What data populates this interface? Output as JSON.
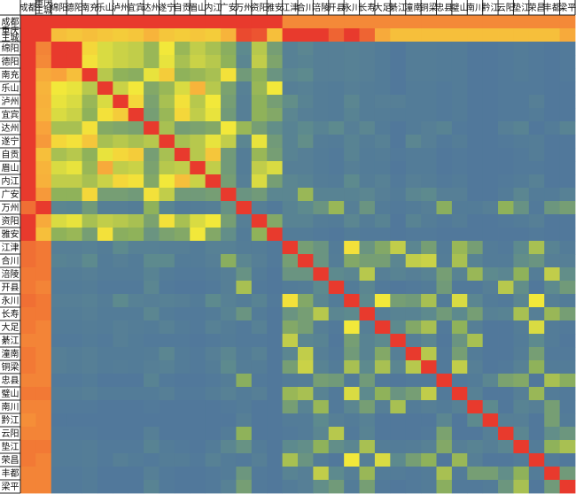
{
  "chart_data": {
    "type": "heatmap",
    "title": "",
    "xlabel": "",
    "ylabel": "",
    "colormap": {
      "low": "#4466a8",
      "stops": [
        "#4466a8",
        "#5d8a8e",
        "#8fb25a",
        "#f2e83a",
        "#f8a33b",
        "#e83a2d"
      ],
      "high": "#e83a2d"
    },
    "labels": [
      "成都",
      "重庆主城",
      "绵阳",
      "德阳",
      "南充",
      "乐山",
      "泸州",
      "宜宾",
      "达州",
      "遂宁",
      "自贡",
      "眉山",
      "内江",
      "广安",
      "万州",
      "资阳",
      "雅安",
      "江津",
      "合川",
      "涪陵",
      "开县",
      "永川",
      "长寿",
      "大足",
      "綦江",
      "潼南",
      "铜梁",
      "忠县",
      "璧山",
      "南川",
      "黔江",
      "云阳",
      "垫江",
      "荣昌",
      "丰都",
      "梁平"
    ],
    "values": [
      [
        1.0,
        1.0,
        1.0,
        1.0,
        1.0,
        1.0,
        1.0,
        1.0,
        1.0,
        1.0,
        1.0,
        1.0,
        1.0,
        1.0,
        1.0,
        1.0,
        1.0,
        0.85,
        0.85,
        0.85,
        0.85,
        0.85,
        0.85,
        0.85,
        0.85,
        0.85,
        0.85,
        0.85,
        0.85,
        0.85,
        0.85,
        0.85,
        0.85,
        0.85,
        0.85,
        0.85
      ],
      [
        1.0,
        1.0,
        0.72,
        0.7,
        0.72,
        0.7,
        0.68,
        0.7,
        0.75,
        0.7,
        0.68,
        0.7,
        0.68,
        0.75,
        0.97,
        0.95,
        0.72,
        1.0,
        1.0,
        1.0,
        0.92,
        1.0,
        0.92,
        0.78,
        0.72,
        0.72,
        0.72,
        0.72,
        0.72,
        0.72,
        0.72,
        0.72,
        0.72,
        0.72,
        0.72,
        0.78
      ],
      [
        1.0,
        0.86,
        1.0,
        1.0,
        0.65,
        0.55,
        0.52,
        0.5,
        0.42,
        0.6,
        0.42,
        0.5,
        0.45,
        0.38,
        0.2,
        0.48,
        0.3,
        0.15,
        0.18,
        0.14,
        0.14,
        0.15,
        0.14,
        0.12,
        0.1,
        0.13,
        0.13,
        0.12,
        0.12,
        0.1,
        0.1,
        0.11,
        0.12,
        0.11,
        0.1,
        0.11
      ],
      [
        1.0,
        0.85,
        1.0,
        1.0,
        0.62,
        0.55,
        0.52,
        0.5,
        0.42,
        0.58,
        0.45,
        0.52,
        0.48,
        0.4,
        0.18,
        0.5,
        0.33,
        0.15,
        0.16,
        0.14,
        0.14,
        0.15,
        0.14,
        0.12,
        0.1,
        0.13,
        0.13,
        0.12,
        0.12,
        0.1,
        0.1,
        0.11,
        0.12,
        0.11,
        0.1,
        0.11
      ],
      [
        1.0,
        0.78,
        0.8,
        0.72,
        1.0,
        0.48,
        0.4,
        0.38,
        0.58,
        0.68,
        0.4,
        0.42,
        0.45,
        0.62,
        0.28,
        0.4,
        0.25,
        0.18,
        0.2,
        0.14,
        0.14,
        0.15,
        0.14,
        0.12,
        0.1,
        0.13,
        0.13,
        0.12,
        0.12,
        0.1,
        0.1,
        0.11,
        0.12,
        0.11,
        0.1,
        0.11
      ],
      [
        1.0,
        0.75,
        0.6,
        0.58,
        0.48,
        1.0,
        0.52,
        0.6,
        0.35,
        0.42,
        0.55,
        0.75,
        0.48,
        0.32,
        0.15,
        0.42,
        0.6,
        0.14,
        0.15,
        0.13,
        0.12,
        0.14,
        0.13,
        0.12,
        0.1,
        0.12,
        0.12,
        0.11,
        0.12,
        0.1,
        0.1,
        0.11,
        0.11,
        0.11,
        0.1,
        0.1
      ],
      [
        1.0,
        0.76,
        0.58,
        0.55,
        0.42,
        0.55,
        1.0,
        0.65,
        0.32,
        0.45,
        0.62,
        0.48,
        0.6,
        0.3,
        0.14,
        0.4,
        0.3,
        0.22,
        0.16,
        0.13,
        0.12,
        0.18,
        0.13,
        0.14,
        0.14,
        0.12,
        0.12,
        0.11,
        0.12,
        0.1,
        0.1,
        0.11,
        0.11,
        0.14,
        0.1,
        0.1
      ],
      [
        1.0,
        0.75,
        0.55,
        0.52,
        0.4,
        0.62,
        0.68,
        1.0,
        0.3,
        0.42,
        0.65,
        0.5,
        0.58,
        0.28,
        0.14,
        0.4,
        0.35,
        0.18,
        0.14,
        0.13,
        0.12,
        0.16,
        0.13,
        0.13,
        0.12,
        0.12,
        0.12,
        0.11,
        0.12,
        0.1,
        0.1,
        0.11,
        0.11,
        0.12,
        0.1,
        0.1
      ],
      [
        1.0,
        0.8,
        0.45,
        0.45,
        0.62,
        0.36,
        0.34,
        0.32,
        1.0,
        0.45,
        0.3,
        0.32,
        0.35,
        0.6,
        0.42,
        0.3,
        0.22,
        0.16,
        0.2,
        0.16,
        0.2,
        0.14,
        0.18,
        0.12,
        0.1,
        0.12,
        0.14,
        0.16,
        0.11,
        0.1,
        0.1,
        0.14,
        0.16,
        0.1,
        0.12,
        0.16
      ],
      [
        1.0,
        0.82,
        0.65,
        0.62,
        0.7,
        0.45,
        0.48,
        0.45,
        0.48,
        1.0,
        0.45,
        0.48,
        0.58,
        0.5,
        0.18,
        0.58,
        0.28,
        0.16,
        0.22,
        0.13,
        0.12,
        0.16,
        0.13,
        0.15,
        0.1,
        0.18,
        0.14,
        0.11,
        0.13,
        0.1,
        0.1,
        0.11,
        0.12,
        0.13,
        0.1,
        0.1
      ],
      [
        1.0,
        0.72,
        0.45,
        0.48,
        0.4,
        0.58,
        0.65,
        0.68,
        0.3,
        0.45,
        1.0,
        0.48,
        0.7,
        0.28,
        0.13,
        0.42,
        0.3,
        0.16,
        0.14,
        0.12,
        0.11,
        0.16,
        0.12,
        0.13,
        0.11,
        0.12,
        0.12,
        0.1,
        0.11,
        0.1,
        0.1,
        0.1,
        0.11,
        0.13,
        0.1,
        0.1
      ],
      [
        1.0,
        0.75,
        0.55,
        0.58,
        0.42,
        0.78,
        0.5,
        0.52,
        0.32,
        0.48,
        0.5,
        1.0,
        0.5,
        0.28,
        0.13,
        0.5,
        0.55,
        0.14,
        0.14,
        0.12,
        0.11,
        0.14,
        0.12,
        0.12,
        0.1,
        0.12,
        0.12,
        0.1,
        0.11,
        0.1,
        0.1,
        0.1,
        0.11,
        0.11,
        0.1,
        0.1
      ],
      [
        1.0,
        0.76,
        0.5,
        0.5,
        0.45,
        0.52,
        0.65,
        0.62,
        0.35,
        0.6,
        0.72,
        0.52,
        1.0,
        0.3,
        0.14,
        0.55,
        0.3,
        0.18,
        0.16,
        0.13,
        0.12,
        0.2,
        0.13,
        0.15,
        0.11,
        0.14,
        0.13,
        0.11,
        0.12,
        0.1,
        0.1,
        0.11,
        0.12,
        0.15,
        0.1,
        0.1
      ],
      [
        1.0,
        0.82,
        0.4,
        0.4,
        0.65,
        0.3,
        0.3,
        0.28,
        0.62,
        0.5,
        0.28,
        0.28,
        0.3,
        1.0,
        0.25,
        0.28,
        0.18,
        0.18,
        0.42,
        0.16,
        0.16,
        0.16,
        0.18,
        0.14,
        0.12,
        0.18,
        0.2,
        0.14,
        0.14,
        0.1,
        0.1,
        0.12,
        0.18,
        0.12,
        0.12,
        0.15
      ],
      [
        0.9,
        1.0,
        0.18,
        0.17,
        0.28,
        0.14,
        0.14,
        0.13,
        0.4,
        0.17,
        0.12,
        0.13,
        0.14,
        0.24,
        1.0,
        0.14,
        0.11,
        0.16,
        0.2,
        0.25,
        0.42,
        0.14,
        0.25,
        0.12,
        0.11,
        0.12,
        0.14,
        0.38,
        0.12,
        0.12,
        0.14,
        0.4,
        0.24,
        0.11,
        0.26,
        0.3
      ],
      [
        1.0,
        0.78,
        0.55,
        0.58,
        0.45,
        0.5,
        0.48,
        0.45,
        0.32,
        0.62,
        0.45,
        0.55,
        0.6,
        0.3,
        0.14,
        1.0,
        0.35,
        0.16,
        0.16,
        0.13,
        0.12,
        0.18,
        0.13,
        0.16,
        0.1,
        0.16,
        0.13,
        0.11,
        0.13,
        0.1,
        0.1,
        0.11,
        0.12,
        0.14,
        0.1,
        0.1
      ],
      [
        1.0,
        0.72,
        0.4,
        0.42,
        0.3,
        0.62,
        0.38,
        0.4,
        0.25,
        0.32,
        0.35,
        0.6,
        0.35,
        0.22,
        0.12,
        0.4,
        1.0,
        0.12,
        0.12,
        0.11,
        0.1,
        0.12,
        0.11,
        0.11,
        0.1,
        0.11,
        0.11,
        0.1,
        0.1,
        0.1,
        0.1,
        0.1,
        0.1,
        0.11,
        0.1,
        0.1
      ],
      [
        0.9,
        0.88,
        0.14,
        0.14,
        0.15,
        0.13,
        0.2,
        0.15,
        0.15,
        0.14,
        0.14,
        0.12,
        0.15,
        0.15,
        0.13,
        0.13,
        0.11,
        1.0,
        0.3,
        0.25,
        0.12,
        0.62,
        0.25,
        0.35,
        0.5,
        0.18,
        0.3,
        0.12,
        0.42,
        0.3,
        0.12,
        0.11,
        0.2,
        0.45,
        0.16,
        0.12
      ],
      [
        0.9,
        0.88,
        0.16,
        0.15,
        0.2,
        0.12,
        0.14,
        0.12,
        0.2,
        0.2,
        0.12,
        0.12,
        0.14,
        0.38,
        0.18,
        0.14,
        0.11,
        0.3,
        1.0,
        0.25,
        0.13,
        0.35,
        0.3,
        0.3,
        0.18,
        0.5,
        0.52,
        0.13,
        0.45,
        0.16,
        0.12,
        0.12,
        0.22,
        0.25,
        0.14,
        0.14
      ],
      [
        0.88,
        0.88,
        0.13,
        0.13,
        0.14,
        0.12,
        0.12,
        0.12,
        0.16,
        0.12,
        0.11,
        0.11,
        0.12,
        0.14,
        0.24,
        0.12,
        0.1,
        0.25,
        0.25,
        1.0,
        0.2,
        0.18,
        0.48,
        0.14,
        0.16,
        0.14,
        0.16,
        0.3,
        0.16,
        0.42,
        0.2,
        0.18,
        0.4,
        0.13,
        0.5,
        0.22
      ],
      [
        0.88,
        0.86,
        0.12,
        0.12,
        0.13,
        0.11,
        0.11,
        0.11,
        0.18,
        0.11,
        0.1,
        0.1,
        0.11,
        0.14,
        0.45,
        0.11,
        0.1,
        0.12,
        0.13,
        0.2,
        1.0,
        0.12,
        0.18,
        0.11,
        0.1,
        0.11,
        0.12,
        0.28,
        0.11,
        0.11,
        0.14,
        0.48,
        0.22,
        0.1,
        0.2,
        0.28
      ],
      [
        0.9,
        0.88,
        0.14,
        0.14,
        0.15,
        0.13,
        0.2,
        0.15,
        0.14,
        0.15,
        0.14,
        0.12,
        0.2,
        0.15,
        0.13,
        0.16,
        0.11,
        0.62,
        0.35,
        0.18,
        0.12,
        1.0,
        0.2,
        0.6,
        0.3,
        0.28,
        0.45,
        0.12,
        0.55,
        0.18,
        0.12,
        0.11,
        0.18,
        0.6,
        0.14,
        0.12
      ],
      [
        0.88,
        0.88,
        0.13,
        0.13,
        0.14,
        0.12,
        0.12,
        0.12,
        0.18,
        0.12,
        0.11,
        0.11,
        0.12,
        0.16,
        0.25,
        0.12,
        0.1,
        0.25,
        0.3,
        0.48,
        0.18,
        0.2,
        1.0,
        0.14,
        0.16,
        0.16,
        0.2,
        0.28,
        0.2,
        0.3,
        0.15,
        0.16,
        0.45,
        0.14,
        0.42,
        0.3
      ],
      [
        0.88,
        0.86,
        0.12,
        0.12,
        0.13,
        0.12,
        0.14,
        0.13,
        0.12,
        0.15,
        0.12,
        0.11,
        0.15,
        0.13,
        0.11,
        0.15,
        0.1,
        0.35,
        0.3,
        0.14,
        0.11,
        0.6,
        0.14,
        1.0,
        0.2,
        0.35,
        0.45,
        0.11,
        0.4,
        0.14,
        0.1,
        0.1,
        0.13,
        0.55,
        0.12,
        0.11
      ],
      [
        0.86,
        0.86,
        0.11,
        0.11,
        0.12,
        0.11,
        0.14,
        0.12,
        0.11,
        0.11,
        0.11,
        0.1,
        0.11,
        0.12,
        0.11,
        0.11,
        0.1,
        0.5,
        0.18,
        0.16,
        0.1,
        0.3,
        0.16,
        0.2,
        1.0,
        0.14,
        0.18,
        0.1,
        0.25,
        0.45,
        0.1,
        0.1,
        0.12,
        0.2,
        0.12,
        0.1
      ],
      [
        0.88,
        0.86,
        0.14,
        0.13,
        0.14,
        0.12,
        0.12,
        0.12,
        0.13,
        0.18,
        0.12,
        0.11,
        0.14,
        0.18,
        0.12,
        0.15,
        0.1,
        0.18,
        0.5,
        0.14,
        0.11,
        0.28,
        0.16,
        0.35,
        0.14,
        1.0,
        0.48,
        0.11,
        0.3,
        0.12,
        0.1,
        0.1,
        0.13,
        0.3,
        0.11,
        0.11
      ],
      [
        0.88,
        0.86,
        0.14,
        0.13,
        0.14,
        0.12,
        0.13,
        0.12,
        0.14,
        0.15,
        0.12,
        0.11,
        0.13,
        0.2,
        0.13,
        0.13,
        0.1,
        0.3,
        0.52,
        0.16,
        0.12,
        0.45,
        0.2,
        0.45,
        0.18,
        0.48,
        1.0,
        0.11,
        0.5,
        0.14,
        0.1,
        0.11,
        0.15,
        0.4,
        0.12,
        0.12
      ],
      [
        0.86,
        0.86,
        0.11,
        0.11,
        0.12,
        0.1,
        0.1,
        0.1,
        0.16,
        0.11,
        0.1,
        0.1,
        0.11,
        0.13,
        0.38,
        0.11,
        0.1,
        0.12,
        0.13,
        0.3,
        0.28,
        0.12,
        0.28,
        0.11,
        0.1,
        0.11,
        0.11,
        1.0,
        0.11,
        0.12,
        0.18,
        0.32,
        0.35,
        0.1,
        0.45,
        0.38
      ],
      [
        0.88,
        0.88,
        0.13,
        0.13,
        0.14,
        0.12,
        0.12,
        0.12,
        0.12,
        0.14,
        0.11,
        0.11,
        0.13,
        0.15,
        0.12,
        0.14,
        0.1,
        0.42,
        0.45,
        0.16,
        0.11,
        0.55,
        0.2,
        0.4,
        0.25,
        0.3,
        0.5,
        0.11,
        1.0,
        0.15,
        0.1,
        0.1,
        0.14,
        0.42,
        0.12,
        0.11
      ],
      [
        0.86,
        0.86,
        0.11,
        0.11,
        0.11,
        0.1,
        0.1,
        0.1,
        0.11,
        0.1,
        0.1,
        0.1,
        0.1,
        0.11,
        0.12,
        0.1,
        0.1,
        0.3,
        0.16,
        0.42,
        0.11,
        0.18,
        0.3,
        0.14,
        0.45,
        0.12,
        0.14,
        0.12,
        0.15,
        1.0,
        0.2,
        0.1,
        0.16,
        0.14,
        0.3,
        0.11
      ],
      [
        0.84,
        0.86,
        0.1,
        0.1,
        0.1,
        0.1,
        0.1,
        0.1,
        0.1,
        0.1,
        0.1,
        0.1,
        0.1,
        0.1,
        0.14,
        0.1,
        0.1,
        0.12,
        0.12,
        0.2,
        0.14,
        0.12,
        0.15,
        0.1,
        0.1,
        0.1,
        0.1,
        0.18,
        0.1,
        0.2,
        1.0,
        0.14,
        0.14,
        0.1,
        0.3,
        0.12
      ],
      [
        0.86,
        0.86,
        0.11,
        0.11,
        0.11,
        0.1,
        0.1,
        0.1,
        0.14,
        0.1,
        0.1,
        0.1,
        0.1,
        0.12,
        0.4,
        0.1,
        0.1,
        0.11,
        0.12,
        0.18,
        0.48,
        0.11,
        0.16,
        0.1,
        0.1,
        0.1,
        0.11,
        0.32,
        0.1,
        0.1,
        0.14,
        1.0,
        0.18,
        0.1,
        0.22,
        0.26
      ],
      [
        0.88,
        0.88,
        0.12,
        0.12,
        0.13,
        0.11,
        0.11,
        0.11,
        0.16,
        0.12,
        0.11,
        0.1,
        0.12,
        0.18,
        0.24,
        0.12,
        0.1,
        0.2,
        0.22,
        0.4,
        0.22,
        0.18,
        0.45,
        0.13,
        0.12,
        0.13,
        0.15,
        0.35,
        0.14,
        0.16,
        0.14,
        0.18,
        1.0,
        0.12,
        0.4,
        0.45
      ],
      [
        0.88,
        0.86,
        0.12,
        0.12,
        0.13,
        0.11,
        0.14,
        0.12,
        0.11,
        0.13,
        0.13,
        0.11,
        0.15,
        0.12,
        0.11,
        0.14,
        0.1,
        0.45,
        0.25,
        0.13,
        0.1,
        0.6,
        0.14,
        0.55,
        0.2,
        0.3,
        0.4,
        0.1,
        0.42,
        0.14,
        0.1,
        0.1,
        0.12,
        1.0,
        0.12,
        0.1
      ],
      [
        0.86,
        0.86,
        0.11,
        0.11,
        0.12,
        0.1,
        0.1,
        0.1,
        0.14,
        0.11,
        0.1,
        0.1,
        0.11,
        0.12,
        0.26,
        0.11,
        0.1,
        0.16,
        0.14,
        0.5,
        0.2,
        0.14,
        0.42,
        0.12,
        0.12,
        0.11,
        0.12,
        0.45,
        0.12,
        0.3,
        0.3,
        0.22,
        0.4,
        0.12,
        1.0,
        0.28
      ],
      [
        0.86,
        0.86,
        0.11,
        0.11,
        0.12,
        0.1,
        0.1,
        0.1,
        0.16,
        0.11,
        0.1,
        0.1,
        0.11,
        0.15,
        0.3,
        0.11,
        0.1,
        0.12,
        0.14,
        0.22,
        0.28,
        0.12,
        0.3,
        0.11,
        0.1,
        0.11,
        0.12,
        0.38,
        0.11,
        0.11,
        0.12,
        0.26,
        0.45,
        0.1,
        0.28,
        1.0
      ]
    ]
  }
}
